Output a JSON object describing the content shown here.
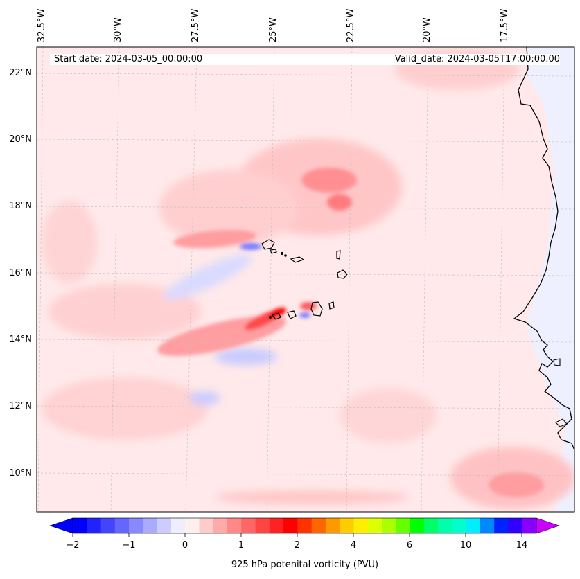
{
  "map": {
    "start_date": "Start date: 2024-03-05_00:00:00",
    "valid_date": "Valid_date: 2024-03-05T17:00:00.00",
    "longitude_labels": [
      "32.5°W",
      "30°W",
      "27.5°W",
      "25°W",
      "22.5°W",
      "20°W",
      "17.5°W"
    ],
    "latitude_labels": [
      "22°N",
      "20°N",
      "18°N",
      "16°N",
      "14°N",
      "12°N",
      "10°N"
    ],
    "region": "Cape Verde islands and West African coast"
  },
  "colorbar": {
    "title": "925 hPa potenital vorticity (PVU)",
    "tick_labels": [
      "−2",
      "−1",
      "0",
      "1",
      "2",
      "4",
      "6",
      "10",
      "14"
    ],
    "colors": [
      "#0000ff",
      "#2222ff",
      "#4444ff",
      "#6666ff",
      "#8888ff",
      "#aaaaff",
      "#ccccff",
      "#eeeeff",
      "#ffeeee",
      "#ffcccc",
      "#ffaaaa",
      "#ff8888",
      "#ff6666",
      "#ff4444",
      "#ff2222",
      "#ff0000",
      "#ff3300",
      "#ff6600",
      "#ff9900",
      "#ffcc00",
      "#ffee00",
      "#ddff00",
      "#aaff00",
      "#66ff00",
      "#00ff00",
      "#00ff66",
      "#00ffaa",
      "#00ffcc",
      "#00eeff",
      "#0088ff",
      "#0022ff",
      "#3300ff",
      "#8800ff"
    ],
    "under_color": "#0000ff",
    "over_color": "#cc00ff",
    "extend": "both"
  }
}
